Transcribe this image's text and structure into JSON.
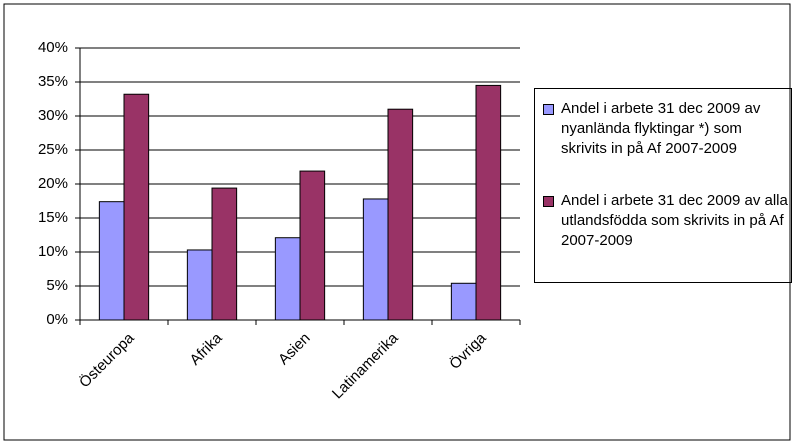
{
  "chart_data": {
    "type": "bar",
    "categories": [
      "Östeuropa",
      "Afrika",
      "Asien",
      "Latinamerika",
      "Övriga"
    ],
    "series": [
      {
        "name": "Andel i arbete 31 dec 2009 av nyanlända flyktingar *) som skrivits in på Af 2007-2009",
        "color": "#9999ff",
        "values": [
          17.4,
          10.3,
          12.1,
          17.8,
          5.4
        ]
      },
      {
        "name": "Andel i arbete 31 dec 2009 av alla utlandsfödda som skrivits in på Af 2007-2009",
        "color": "#993366",
        "values": [
          33.2,
          19.4,
          21.9,
          31.0,
          34.5
        ]
      }
    ],
    "ylim": [
      0,
      40
    ],
    "yticks": [
      {
        "value": 0,
        "label": "0%"
      },
      {
        "value": 5,
        "label": "5%"
      },
      {
        "value": 10,
        "label": "10%"
      },
      {
        "value": 15,
        "label": "15%"
      },
      {
        "value": 20,
        "label": "20%"
      },
      {
        "value": 25,
        "label": "25%"
      },
      {
        "value": 30,
        "label": "30%"
      },
      {
        "value": 35,
        "label": "35%"
      },
      {
        "value": 40,
        "label": "40%"
      }
    ],
    "grid": true,
    "legend": "right"
  }
}
